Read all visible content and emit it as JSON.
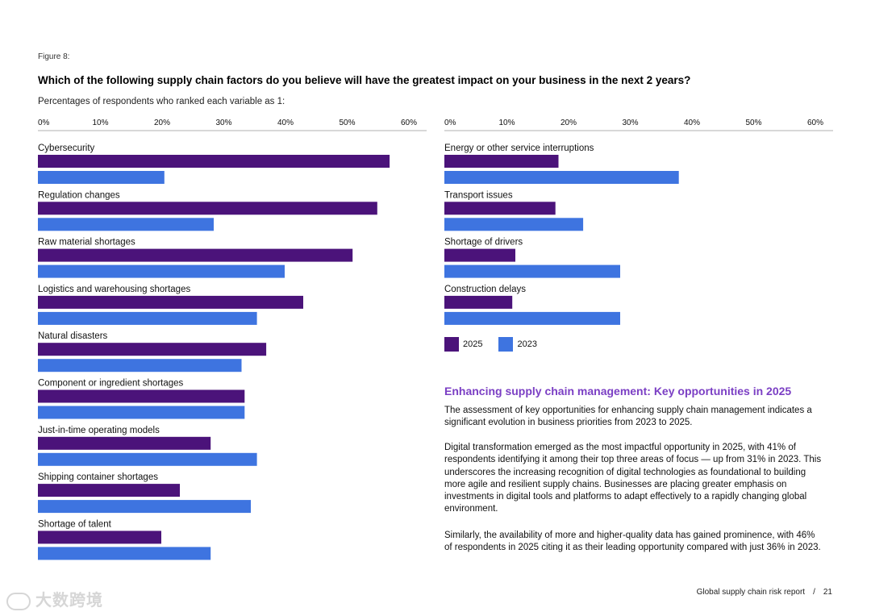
{
  "figure_label": "Figure 8:",
  "question": "Which of the following supply chain factors do you believe will have the greatest impact on your business in the next 2 years?",
  "subtitle": "Percentages of respondents who ranked each variable as 1:",
  "colors": {
    "series_2025": "#4B137A",
    "series_2023": "#3E74E0",
    "heading": "#7B3FC4"
  },
  "chart_data": [
    {
      "type": "bar",
      "orientation": "horizontal",
      "categories": [
        "Cybersecurity",
        "Regulation changes",
        "Raw material shortages",
        "Logistics and warehousing shortages",
        "Natural disasters",
        "Component or ingredient shortages",
        "Just-in-time operating models",
        "Shipping container shortages",
        "Shortage of talent"
      ],
      "series": [
        {
          "name": "2025",
          "values": [
            57,
            55,
            51,
            43,
            37,
            33.5,
            28,
            23,
            20
          ]
        },
        {
          "name": "2023",
          "values": [
            20.5,
            28.5,
            40,
            35.5,
            33,
            33.5,
            35.5,
            34.5,
            28
          ]
        }
      ],
      "xlim": [
        0,
        63
      ],
      "ticks": [
        "0%",
        "10%",
        "20%",
        "30%",
        "40%",
        "50%",
        "60%"
      ],
      "grid": false
    },
    {
      "type": "bar",
      "orientation": "horizontal",
      "categories": [
        "Energy or other service interruptions",
        "Transport issues",
        "Shortage of drivers",
        "Construction delays"
      ],
      "series": [
        {
          "name": "2025",
          "values": [
            18.5,
            18,
            11.5,
            11
          ]
        },
        {
          "name": "2023",
          "values": [
            38,
            22.5,
            28.5,
            28.5
          ]
        }
      ],
      "xlim": [
        0,
        63
      ],
      "ticks": [
        "0%",
        "10%",
        "20%",
        "30%",
        "40%",
        "50%",
        "60%"
      ],
      "grid": false
    }
  ],
  "legend": [
    {
      "label": "2025",
      "color": "#4B137A"
    },
    {
      "label": "2023",
      "color": "#3E74E0"
    }
  ],
  "section_title": "Enhancing supply chain management: Key opportunities in 2025",
  "paragraphs": [
    "The assessment of key opportunities for enhancing supply chain management indicates a significant evolution in business priorities from 2023 to 2025.",
    "Digital transformation emerged as the most impactful opportunity in 2025, with 41% of respondents identifying it among their top three areas of focus — up from 31% in 2023. This underscores the increasing recognition of digital technologies as foundational to building more agile and resilient supply chains. Businesses are placing greater emphasis on investments in digital tools and platforms to adapt effectively to a rapidly changing global environment.",
    "Similarly, the availability of more and higher-quality data has gained prominence, with 46% of respondents in 2025 citing it as their leading opportunity compared with just 36% in 2023."
  ],
  "footer": {
    "report": "Global supply chain risk report",
    "separator": "/",
    "page": "21"
  },
  "watermark": "大数跨境"
}
